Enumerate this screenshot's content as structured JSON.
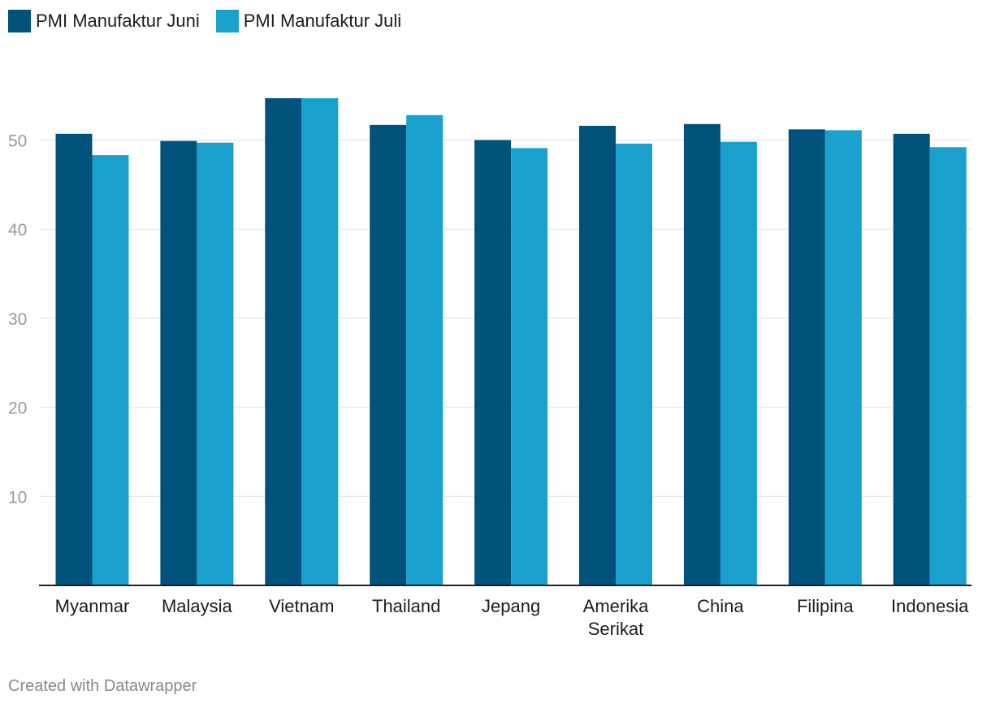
{
  "legend": {
    "items": [
      {
        "label": "PMI Manufaktur Juni",
        "color": "#00527a"
      },
      {
        "label": "PMI Manufaktur Juli",
        "color": "#19a0cc"
      }
    ]
  },
  "chart_data": {
    "type": "bar",
    "categories": [
      "Myanmar",
      "Malaysia",
      "Vietnam",
      "Thailand",
      "Jepang",
      "Amerika Serikat",
      "China",
      "Filipina",
      "Indonesia"
    ],
    "series": [
      {
        "name": "PMI Manufaktur Juni",
        "color": "#00527a",
        "values": [
          50.7,
          49.9,
          54.7,
          51.7,
          50.0,
          51.6,
          51.8,
          51.2,
          50.7
        ]
      },
      {
        "name": "PMI Manufaktur Juli",
        "color": "#19a0cc",
        "values": [
          48.3,
          49.7,
          54.7,
          52.8,
          49.1,
          49.6,
          49.8,
          51.1,
          49.2
        ]
      }
    ],
    "yticks": [
      10,
      20,
      30,
      40,
      50
    ],
    "ylim": [
      0,
      60
    ],
    "grid": true,
    "legend_position": "top-left",
    "title": "",
    "xlabel": "",
    "ylabel": ""
  },
  "footer": {
    "credit": "Created with Datawrapper"
  }
}
